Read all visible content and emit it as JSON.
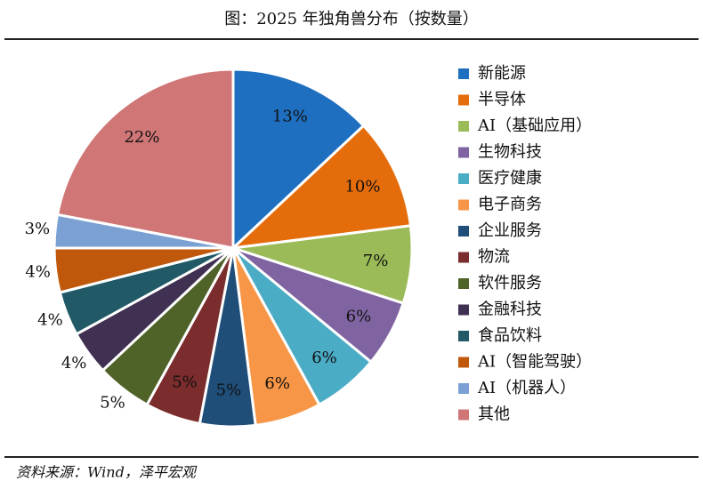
{
  "chart_data": {
    "type": "pie",
    "title": "图：2025 年独角兽分布（按数量）",
    "source": "资料来源：Wind，泽平宏观",
    "categories": [
      "新能源",
      "半导体",
      "AI（基础应用）",
      "生物科技",
      "医疗健康",
      "电子商务",
      "企业服务",
      "物流",
      "软件服务",
      "金融科技",
      "食品饮料",
      "AI（智能驾驶）",
      "AI（机器人）",
      "其他"
    ],
    "values": [
      13,
      10,
      7,
      6,
      6,
      6,
      5,
      5,
      5,
      4,
      4,
      4,
      3,
      22
    ],
    "value_labels": [
      "13%",
      "10%",
      "7%",
      "6%",
      "6%",
      "6%",
      "5%",
      "5%",
      "5%",
      "4%",
      "4%",
      "4%",
      "3%",
      "22%"
    ],
    "colors": [
      "#1f6fc0",
      "#e46c0a",
      "#9bbb59",
      "#8064a2",
      "#4bacc6",
      "#f79646",
      "#1f4e79",
      "#7b2c2c",
      "#4f6228",
      "#403152",
      "#215967",
      "#c0580b",
      "#7ba0d3",
      "#d07676"
    ],
    "legend": "right"
  }
}
